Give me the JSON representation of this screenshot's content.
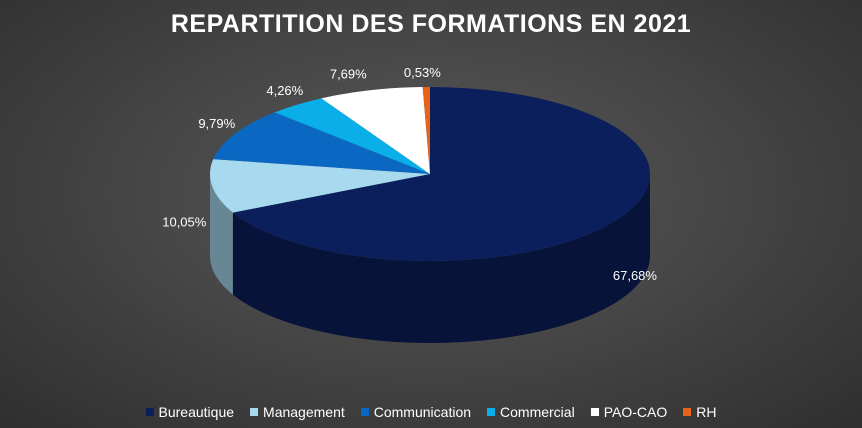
{
  "chart_data": {
    "type": "pie",
    "title": "REPARTITION DES FORMATIONS EN 2021",
    "slices": [
      {
        "label": "Bureautique",
        "value": 67.68,
        "display": "67,68%",
        "color": "#0b1f5c"
      },
      {
        "label": "Management",
        "value": 10.05,
        "display": "10,05%",
        "color": "#a7d9ef"
      },
      {
        "label": "Communication",
        "value": 9.79,
        "display": "9,79%",
        "color": "#0a68c2"
      },
      {
        "label": "Commercial",
        "value": 4.26,
        "display": "4,26%",
        "color": "#0aaee9"
      },
      {
        "label": "PAO-CAO",
        "value": 7.69,
        "display": "7,69%",
        "color": "#ffffff"
      },
      {
        "label": "RH",
        "value": 0.53,
        "display": "0,53%",
        "color": "#e8621a"
      }
    ],
    "legend_position": "bottom",
    "style": "3d-pie"
  }
}
